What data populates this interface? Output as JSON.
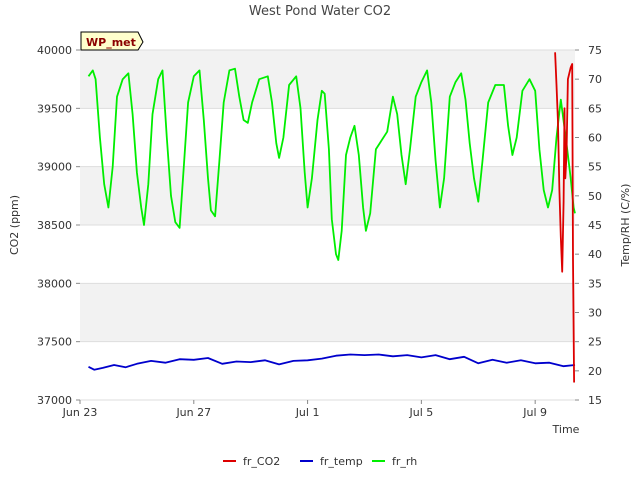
{
  "chart_data": {
    "type": "line",
    "title": "West Pond Water CO2",
    "badge": "WP_met",
    "xlabel": "Time",
    "ylabel_left": "CO2 (ppm)",
    "ylabel_right": "Temp/RH (C/%)",
    "x_ticks": [
      {
        "day": 0,
        "label": "Jun 23"
      },
      {
        "day": 4,
        "label": "Jun 27"
      },
      {
        "day": 8,
        "label": "Jul 1"
      },
      {
        "day": 12,
        "label": "Jul 5"
      },
      {
        "day": 16,
        "label": "Jul 9"
      }
    ],
    "x_range_days": [
      0,
      17.4
    ],
    "y_left": {
      "min": 37000,
      "max": 40000,
      "ticks": [
        {
          "v": 37000,
          "label": "37000"
        },
        {
          "v": 37500,
          "label": "37500"
        },
        {
          "v": 38000,
          "label": "38000"
        },
        {
          "v": 38500,
          "label": "38500"
        },
        {
          "v": 39000,
          "label": "39000"
        },
        {
          "v": 39500,
          "label": "39500"
        },
        {
          "v": 40000,
          "label": "40000"
        }
      ]
    },
    "y_right": {
      "min": 15,
      "max": 75,
      "ticks": [
        {
          "v": 15,
          "label": "15"
        },
        {
          "v": 20,
          "label": "20"
        },
        {
          "v": 25,
          "label": "25"
        },
        {
          "v": 30,
          "label": "30"
        },
        {
          "v": 35,
          "label": "35"
        },
        {
          "v": 40,
          "label": "40"
        },
        {
          "v": 45,
          "label": "45"
        },
        {
          "v": 50,
          "label": "50"
        },
        {
          "v": 55,
          "label": "55"
        },
        {
          "v": 60,
          "label": "60"
        },
        {
          "v": 65,
          "label": "65"
        },
        {
          "v": 70,
          "label": "70"
        },
        {
          "v": 75,
          "label": "75"
        }
      ]
    },
    "legend": [
      {
        "name": "fr_CO2",
        "color": "#dd0000"
      },
      {
        "name": "fr_temp",
        "color": "#0000cc"
      },
      {
        "name": "fr_rh",
        "color": "#00ee00"
      }
    ],
    "series": [
      {
        "name": "fr_CO2",
        "axis": "left",
        "color": "#dd0000",
        "points": [
          [
            16.7,
            39980
          ],
          [
            16.75,
            39700
          ],
          [
            16.8,
            39400
          ],
          [
            16.85,
            38800
          ],
          [
            16.9,
            38400
          ],
          [
            16.95,
            38100
          ],
          [
            17.0,
            38700
          ],
          [
            17.03,
            39500
          ],
          [
            17.06,
            38900
          ],
          [
            17.1,
            39100
          ],
          [
            17.15,
            39750
          ],
          [
            17.2,
            39800
          ],
          [
            17.25,
            39850
          ],
          [
            17.3,
            39880
          ],
          [
            17.33,
            38200
          ],
          [
            17.37,
            37150
          ]
        ]
      },
      {
        "name": "fr_temp",
        "axis": "right",
        "color": "#0000cc",
        "points": [
          [
            0.3,
            20.7
          ],
          [
            0.5,
            20.2
          ],
          [
            0.8,
            20.5
          ],
          [
            1.2,
            21.0
          ],
          [
            1.6,
            20.6
          ],
          [
            2.0,
            21.2
          ],
          [
            2.5,
            21.7
          ],
          [
            3.0,
            21.4
          ],
          [
            3.5,
            22.0
          ],
          [
            4.0,
            21.9
          ],
          [
            4.5,
            22.2
          ],
          [
            5.0,
            21.2
          ],
          [
            5.5,
            21.6
          ],
          [
            6.0,
            21.5
          ],
          [
            6.5,
            21.8
          ],
          [
            7.0,
            21.1
          ],
          [
            7.5,
            21.7
          ],
          [
            8.0,
            21.8
          ],
          [
            8.5,
            22.1
          ],
          [
            9.0,
            22.6
          ],
          [
            9.5,
            22.8
          ],
          [
            10.0,
            22.7
          ],
          [
            10.5,
            22.8
          ],
          [
            11.0,
            22.5
          ],
          [
            11.5,
            22.7
          ],
          [
            12.0,
            22.3
          ],
          [
            12.5,
            22.7
          ],
          [
            13.0,
            22.0
          ],
          [
            13.5,
            22.4
          ],
          [
            14.0,
            21.3
          ],
          [
            14.5,
            21.9
          ],
          [
            15.0,
            21.4
          ],
          [
            15.5,
            21.8
          ],
          [
            16.0,
            21.3
          ],
          [
            16.5,
            21.4
          ],
          [
            17.0,
            20.8
          ],
          [
            17.4,
            21.0
          ]
        ]
      },
      {
        "name": "fr_rh",
        "axis": "right",
        "color": "#00ee00",
        "points": [
          [
            0.3,
            70.5
          ],
          [
            0.45,
            71.5
          ],
          [
            0.55,
            70.0
          ],
          [
            0.7,
            60.0
          ],
          [
            0.85,
            52.0
          ],
          [
            1.0,
            48.0
          ],
          [
            1.15,
            55.0
          ],
          [
            1.3,
            67.0
          ],
          [
            1.5,
            70.0
          ],
          [
            1.7,
            71.0
          ],
          [
            1.85,
            64.0
          ],
          [
            2.0,
            54.0
          ],
          [
            2.15,
            48.0
          ],
          [
            2.25,
            45.0
          ],
          [
            2.4,
            52.0
          ],
          [
            2.55,
            64.0
          ],
          [
            2.75,
            70.0
          ],
          [
            2.9,
            71.5
          ],
          [
            3.05,
            60.0
          ],
          [
            3.2,
            50.0
          ],
          [
            3.35,
            45.5
          ],
          [
            3.5,
            44.5
          ],
          [
            3.65,
            55.0
          ],
          [
            3.8,
            66.0
          ],
          [
            4.0,
            70.5
          ],
          [
            4.2,
            71.5
          ],
          [
            4.35,
            63.0
          ],
          [
            4.5,
            53.0
          ],
          [
            4.6,
            47.5
          ],
          [
            4.75,
            46.5
          ],
          [
            4.9,
            56.0
          ],
          [
            5.05,
            66.0
          ],
          [
            5.25,
            71.5
          ],
          [
            5.45,
            71.8
          ],
          [
            5.6,
            67.0
          ],
          [
            5.75,
            63.0
          ],
          [
            5.9,
            62.5
          ],
          [
            6.05,
            66.0
          ],
          [
            6.3,
            70.0
          ],
          [
            6.6,
            70.5
          ],
          [
            6.75,
            66.0
          ],
          [
            6.9,
            59.0
          ],
          [
            7.0,
            56.5
          ],
          [
            7.15,
            60.0
          ],
          [
            7.35,
            69.0
          ],
          [
            7.6,
            70.5
          ],
          [
            7.75,
            65.0
          ],
          [
            7.9,
            54.0
          ],
          [
            8.0,
            48.0
          ],
          [
            8.15,
            53.0
          ],
          [
            8.35,
            63.0
          ],
          [
            8.5,
            68.0
          ],
          [
            8.6,
            67.5
          ],
          [
            8.75,
            58.0
          ],
          [
            8.85,
            46.0
          ],
          [
            9.0,
            40.0
          ],
          [
            9.08,
            39.0
          ],
          [
            9.2,
            44.0
          ],
          [
            9.35,
            57.0
          ],
          [
            9.5,
            60.0
          ],
          [
            9.65,
            62.0
          ],
          [
            9.8,
            57.0
          ],
          [
            9.95,
            48.0
          ],
          [
            10.05,
            44.0
          ],
          [
            10.2,
            47.0
          ],
          [
            10.4,
            58.0
          ],
          [
            10.6,
            59.5
          ],
          [
            10.8,
            61.0
          ],
          [
            11.0,
            67.0
          ],
          [
            11.15,
            64.0
          ],
          [
            11.3,
            57.0
          ],
          [
            11.45,
            52.0
          ],
          [
            11.6,
            58.0
          ],
          [
            11.8,
            67.0
          ],
          [
            12.0,
            69.5
          ],
          [
            12.2,
            71.5
          ],
          [
            12.35,
            66.0
          ],
          [
            12.5,
            56.0
          ],
          [
            12.65,
            48.0
          ],
          [
            12.8,
            53.0
          ],
          [
            13.0,
            67.0
          ],
          [
            13.2,
            69.5
          ],
          [
            13.4,
            71.0
          ],
          [
            13.55,
            66.5
          ],
          [
            13.7,
            59.0
          ],
          [
            13.85,
            53.0
          ],
          [
            14.0,
            49.0
          ],
          [
            14.15,
            56.0
          ],
          [
            14.35,
            66.0
          ],
          [
            14.6,
            69.0
          ],
          [
            14.9,
            69.0
          ],
          [
            15.05,
            62.0
          ],
          [
            15.2,
            57.0
          ],
          [
            15.35,
            60.0
          ],
          [
            15.55,
            68.0
          ],
          [
            15.8,
            70.0
          ],
          [
            16.0,
            68.0
          ],
          [
            16.15,
            58.0
          ],
          [
            16.3,
            51.0
          ],
          [
            16.45,
            48.0
          ],
          [
            16.6,
            51.0
          ],
          [
            16.75,
            60.0
          ],
          [
            16.9,
            66.5
          ],
          [
            17.05,
            61.0
          ],
          [
            17.15,
            57.0
          ],
          [
            17.25,
            53.0
          ],
          [
            17.35,
            48.0
          ],
          [
            17.4,
            47.0
          ]
        ]
      }
    ]
  }
}
